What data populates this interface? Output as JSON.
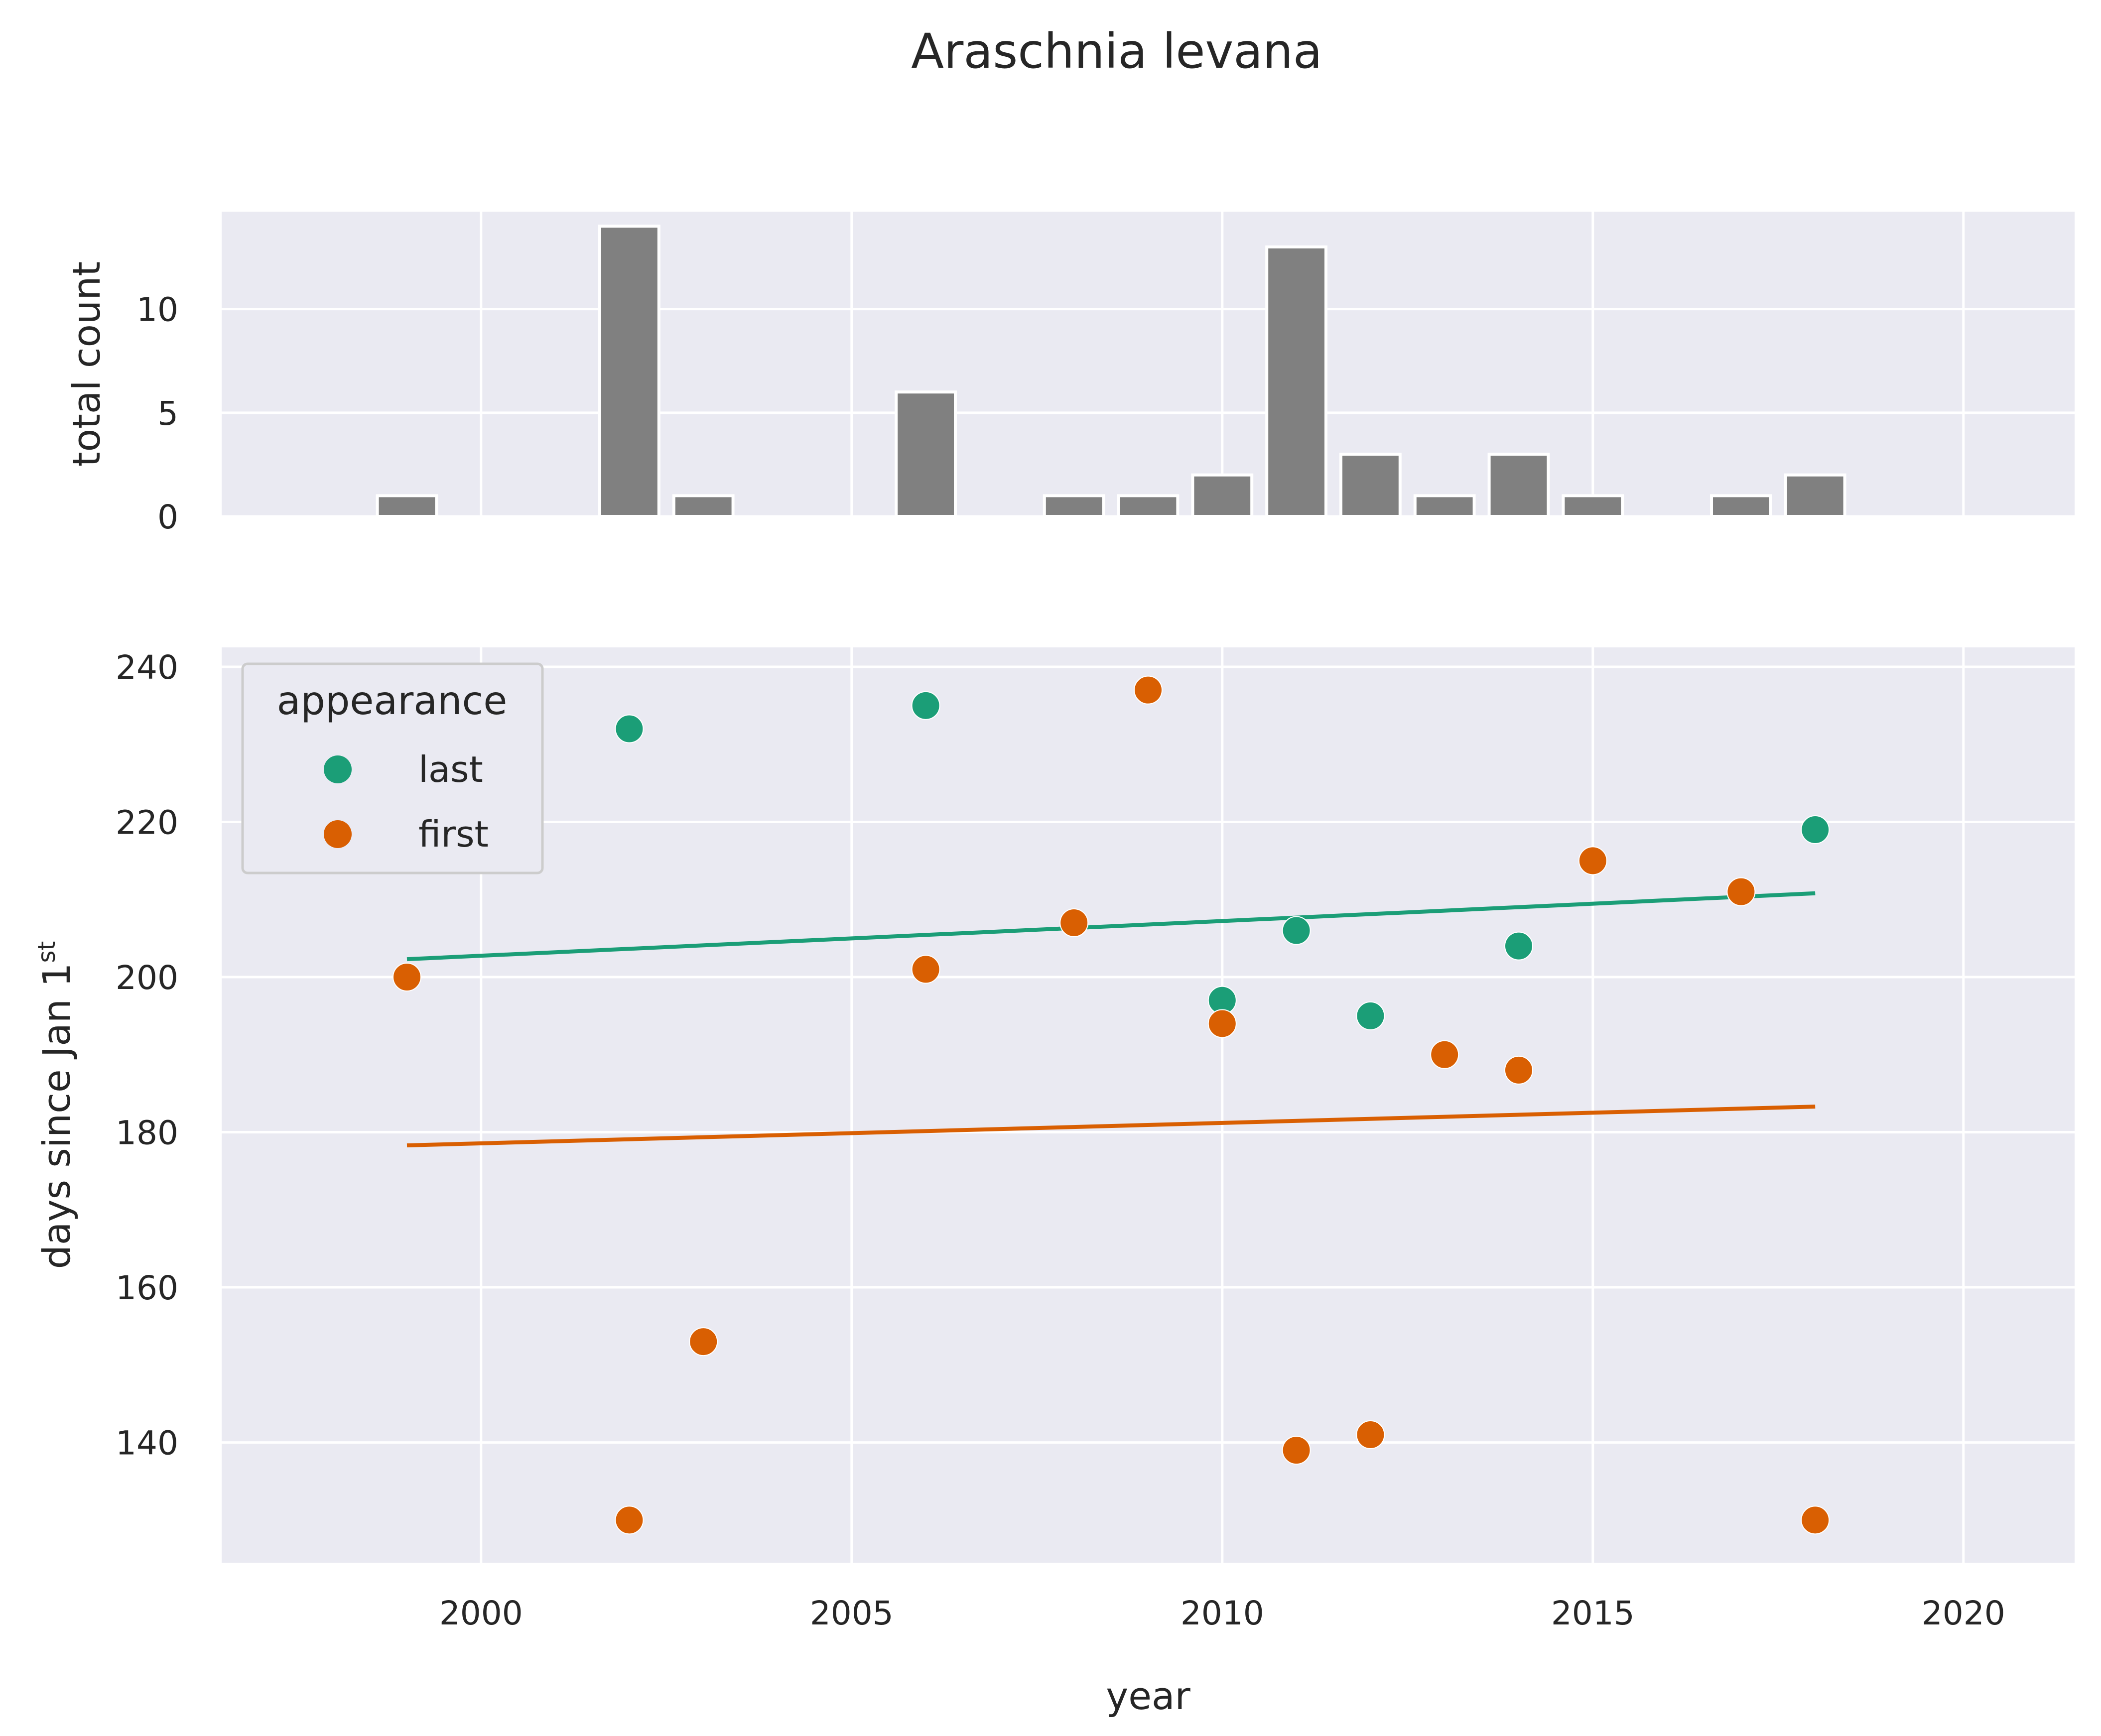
{
  "chart_data": {
    "title": "Araschnia levana",
    "colors": {
      "panel_bg": "#eaeaf2",
      "grid": "#ffffff",
      "bar": "#808080",
      "last": "#1b9e77",
      "first": "#d95f02"
    },
    "histogram": {
      "type": "bar",
      "ylabel": "total count",
      "xlim": [
        1996.5,
        2021.5
      ],
      "ylim": [
        0,
        14.7
      ],
      "yticks": [
        "0",
        "5",
        "10"
      ],
      "bars": [
        {
          "year": 1999,
          "count": 1
        },
        {
          "year": 2002,
          "count": 14
        },
        {
          "year": 2003,
          "count": 1
        },
        {
          "year": 2006,
          "count": 6
        },
        {
          "year": 2008,
          "count": 1
        },
        {
          "year": 2009,
          "count": 1
        },
        {
          "year": 2010,
          "count": 2
        },
        {
          "year": 2011,
          "count": 13
        },
        {
          "year": 2012,
          "count": 3
        },
        {
          "year": 2013,
          "count": 1
        },
        {
          "year": 2014,
          "count": 3
        },
        {
          "year": 2015,
          "count": 1
        },
        {
          "year": 2017,
          "count": 1
        },
        {
          "year": 2018,
          "count": 2
        }
      ]
    },
    "scatter": {
      "type": "scatter",
      "xlabel": "year",
      "ylabel_main": "days since Jan 1",
      "ylabel_sup": "st",
      "xlim": [
        1996.5,
        2021.5
      ],
      "ylim": [
        124.5,
        242.5
      ],
      "xticks": [
        "2000",
        "2005",
        "2010",
        "2015",
        "2020"
      ],
      "yticks": [
        "140",
        "160",
        "180",
        "200",
        "220",
        "240"
      ],
      "grid": true,
      "legend_title": "appearance",
      "legend_position": "upper-left",
      "series": [
        {
          "name": "last",
          "color_key": "last",
          "points": [
            {
              "x": 2002,
              "y": 232
            },
            {
              "x": 2006,
              "y": 235
            },
            {
              "x": 2010,
              "y": 197
            },
            {
              "x": 2011,
              "y": 206
            },
            {
              "x": 2012,
              "y": 195
            },
            {
              "x": 2014,
              "y": 204
            },
            {
              "x": 2017,
              "y": 211
            },
            {
              "x": 2018,
              "y": 219
            }
          ],
          "trend": [
            {
              "x": 1999,
              "y": 202.3
            },
            {
              "x": 2018,
              "y": 210.8
            }
          ]
        },
        {
          "name": "first",
          "color_key": "first",
          "points": [
            {
              "x": 1999,
              "y": 200
            },
            {
              "x": 2002,
              "y": 130
            },
            {
              "x": 2003,
              "y": 153
            },
            {
              "x": 2006,
              "y": 201
            },
            {
              "x": 2008,
              "y": 207
            },
            {
              "x": 2009,
              "y": 237
            },
            {
              "x": 2010,
              "y": 194
            },
            {
              "x": 2011,
              "y": 139
            },
            {
              "x": 2012,
              "y": 141
            },
            {
              "x": 2013,
              "y": 190
            },
            {
              "x": 2014,
              "y": 188
            },
            {
              "x": 2015,
              "y": 215
            },
            {
              "x": 2017,
              "y": 211
            },
            {
              "x": 2018,
              "y": 130
            }
          ],
          "trend": [
            {
              "x": 1999,
              "y": 178.3
            },
            {
              "x": 2018,
              "y": 183.3
            }
          ]
        }
      ]
    }
  }
}
